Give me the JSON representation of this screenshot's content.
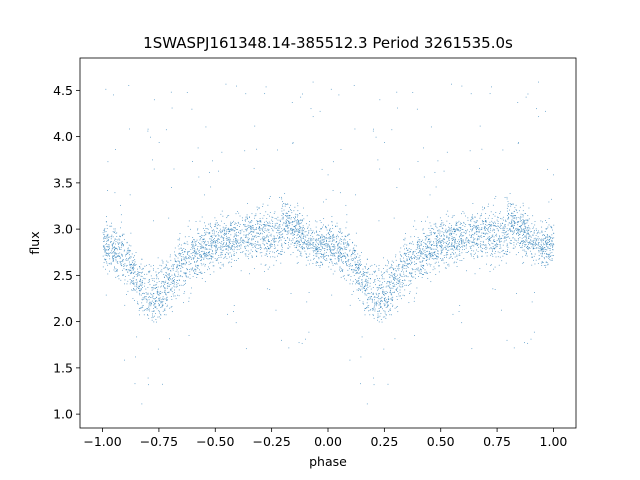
{
  "chart_data": {
    "type": "scatter",
    "title": "1SWASPJ161348.14-385512.3 Period 3261535.0s",
    "xlabel": "phase",
    "ylabel": "flux",
    "xlim": [
      -1.1,
      1.1
    ],
    "ylim": [
      0.85,
      4.85
    ],
    "x_ticks": [
      -1.0,
      -0.75,
      -0.5,
      -0.25,
      0.0,
      0.25,
      0.5,
      0.75,
      1.0
    ],
    "x_tick_labels": [
      "−1.00",
      "−0.75",
      "−0.50",
      "−0.25",
      "0.00",
      "0.25",
      "0.50",
      "0.75",
      "1.00"
    ],
    "y_ticks": [
      1.0,
      1.5,
      2.0,
      2.5,
      3.0,
      3.5,
      4.0,
      4.5
    ],
    "y_tick_labels": [
      "1.0",
      "1.5",
      "2.0",
      "2.5",
      "3.0",
      "3.5",
      "4.0",
      "4.5"
    ],
    "grid": false,
    "legend": "none",
    "series": [
      {
        "color": "#1f77b4",
        "marker": "point",
        "profile_phase": [
          0.0,
          0.05,
          0.1,
          0.15,
          0.2,
          0.25,
          0.3,
          0.35,
          0.4,
          0.45,
          0.5,
          0.55,
          0.6,
          0.65,
          0.7,
          0.75,
          0.8,
          0.85,
          0.9,
          0.95,
          1.0
        ],
        "profile_flux": [
          2.85,
          2.78,
          2.7,
          2.45,
          2.3,
          2.3,
          2.45,
          2.62,
          2.72,
          2.8,
          2.85,
          2.88,
          2.92,
          2.95,
          2.95,
          2.9,
          3.05,
          3.0,
          2.9,
          2.82,
          2.85
        ],
        "profile_spread": [
          0.25,
          0.25,
          0.3,
          0.3,
          0.3,
          0.3,
          0.3,
          0.3,
          0.3,
          0.3,
          0.25,
          0.25,
          0.25,
          0.25,
          0.3,
          0.3,
          0.3,
          0.25,
          0.25,
          0.25,
          0.25
        ]
      }
    ]
  }
}
